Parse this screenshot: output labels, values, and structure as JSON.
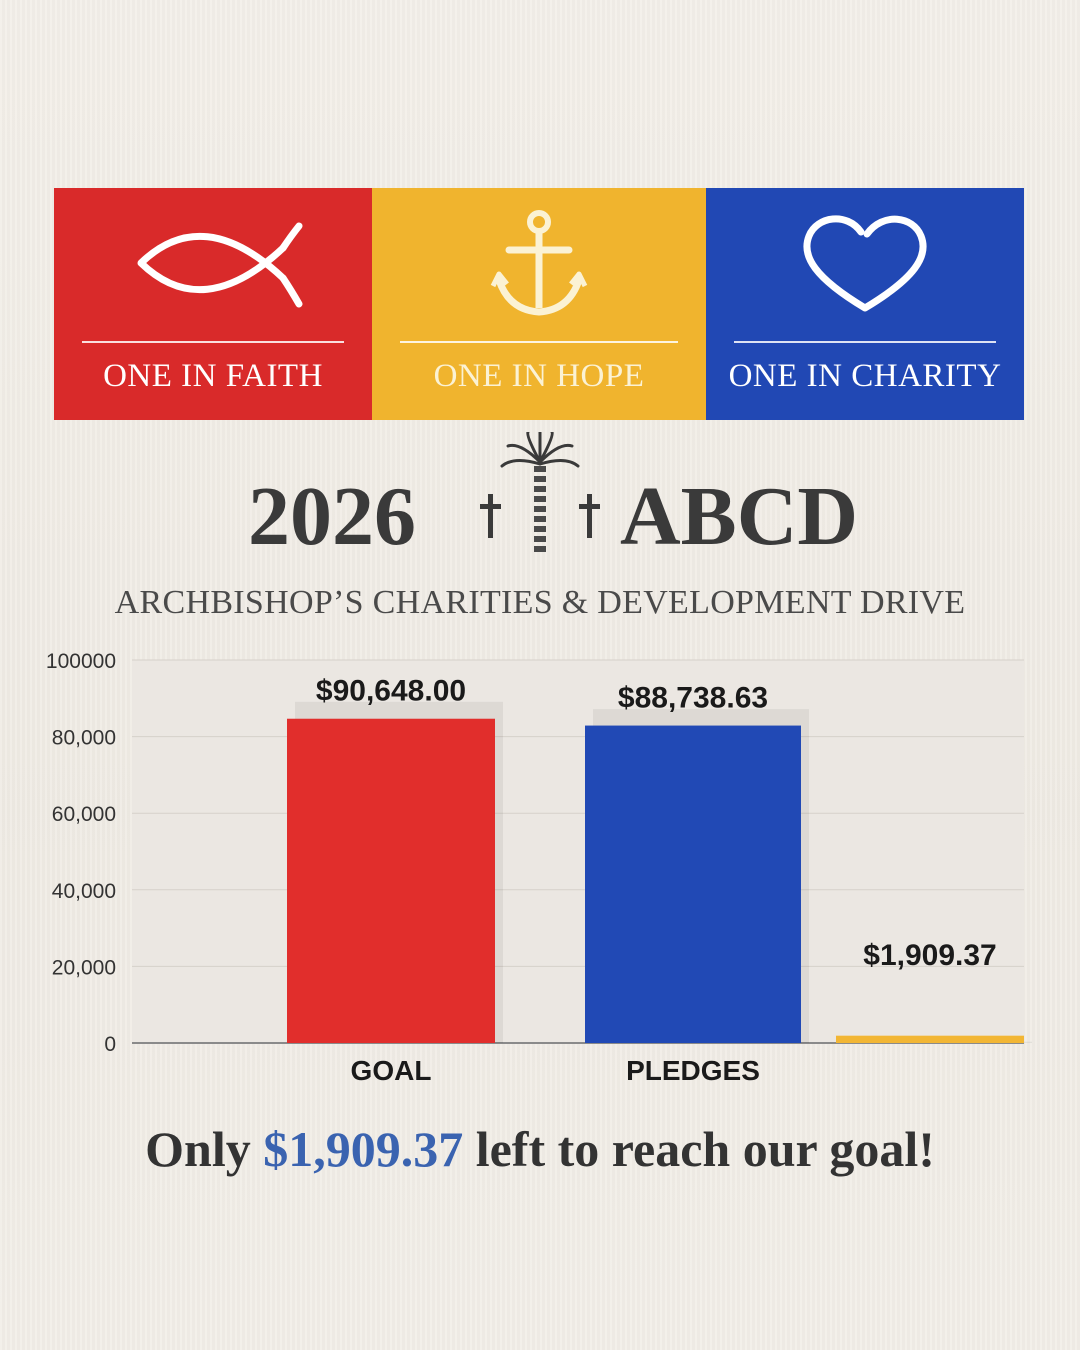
{
  "banner": {
    "panels": [
      {
        "label": "ONE IN FAITH",
        "icon": "ichthys-fish-icon",
        "color": "#d92a2a"
      },
      {
        "label": "ONE IN HOPE",
        "icon": "anchor-icon",
        "color": "#f0b42e"
      },
      {
        "label": "ONE IN CHARITY",
        "icon": "heart-icon",
        "color": "#2148b4"
      }
    ]
  },
  "header": {
    "year": "2026",
    "acronym": "ABCD",
    "emblem": "palm-tree-with-crosses-icon",
    "subtitle": "ARCHBISHOP’S CHARITIES & DEVELOPMENT DRIVE"
  },
  "chart_data": {
    "type": "bar",
    "categories": [
      "GOAL",
      "PLEDGES",
      ""
    ],
    "values": [
      90648.0,
      88738.63,
      1909.37
    ],
    "data_labels": [
      "$90,648.00",
      "$88,738.63",
      "$1,909.37"
    ],
    "colors": [
      "#e12e2c",
      "#2149b5",
      "#f2b634"
    ],
    "yticks": [
      "0",
      "20,000",
      "40,000",
      "60,000",
      "80,000",
      "100000"
    ],
    "ylim": [
      0,
      100000
    ],
    "grid": true
  },
  "footer": {
    "prefix": "Only",
    "amount": "$1,909.37",
    "suffix": "left to reach our goal!",
    "highlight_color": "#3a63b0"
  }
}
